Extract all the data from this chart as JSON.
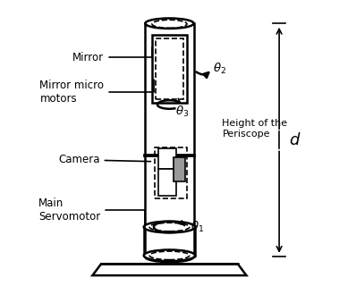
{
  "bg_color": "#ffffff",
  "line_color": "#000000",
  "labels": {
    "mirror": "Mirror",
    "mirror_motors": "Mirror micro\nmotors",
    "camera": "Camera",
    "main_servo": "Main\nServomotor",
    "height_label": "Height of the\nPeriscope",
    "d_label": "$d$",
    "theta1": "$\\theta_1$",
    "theta2": "$\\theta_2$",
    "theta3": "$\\theta_3$"
  },
  "figsize": [
    3.98,
    3.2
  ],
  "dpi": 100
}
